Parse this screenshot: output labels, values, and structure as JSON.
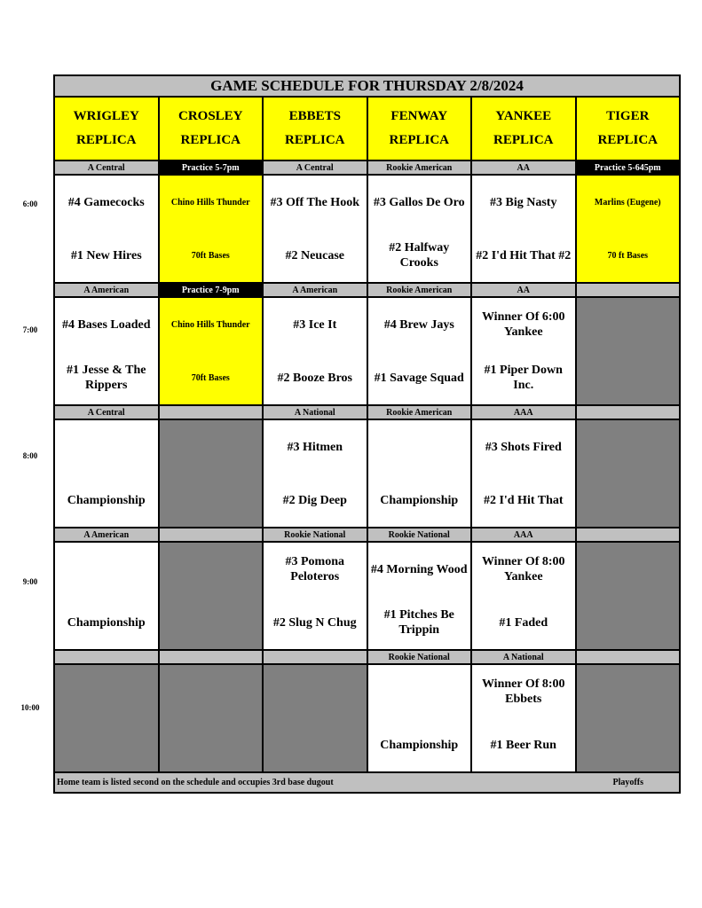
{
  "title": "GAME SCHEDULE FOR THURSDAY 2/8/2024",
  "fields": [
    {
      "name": "WRIGLEY",
      "sub": "REPLICA"
    },
    {
      "name": "CROSLEY",
      "sub": "REPLICA"
    },
    {
      "name": "EBBETS",
      "sub": "REPLICA"
    },
    {
      "name": "FENWAY",
      "sub": "REPLICA"
    },
    {
      "name": "YANKEE",
      "sub": "REPLICA"
    },
    {
      "name": "TIGER",
      "sub": "REPLICA"
    }
  ],
  "colors": {
    "header": "#ffff00",
    "label": "#c0c0c0",
    "practice_label": "#000000",
    "empty_slot": "#808080",
    "game": "#ffffff",
    "practice": "#ffff00"
  },
  "slots": [
    {
      "time": "6:00",
      "cells": [
        {
          "label": "A Central",
          "style": "gray",
          "type": "white",
          "top": "#4 Gamecocks",
          "bottom": "#1 New Hires"
        },
        {
          "label": "Practice 5-7pm",
          "style": "black",
          "type": "yellow",
          "top": "Chino Hills Thunder",
          "bottom": "70ft Bases"
        },
        {
          "label": "A Central",
          "style": "gray",
          "type": "white",
          "top": "#3 Off The Hook",
          "bottom": "#2 Neucase"
        },
        {
          "label": "Rookie American",
          "style": "gray",
          "type": "white",
          "top": "#3 Gallos De Oro",
          "bottom": "#2 Halfway Crooks"
        },
        {
          "label": "AA",
          "style": "gray",
          "type": "white",
          "top": "#3 Big Nasty",
          "bottom": "#2 I'd Hit That #2"
        },
        {
          "label": "Practice 5-645pm",
          "style": "black",
          "type": "yellow",
          "top": "Marlins (Eugene)",
          "bottom": "70 ft Bases"
        }
      ]
    },
    {
      "time": "7:00",
      "cells": [
        {
          "label": "A American",
          "style": "gray",
          "type": "white",
          "top": "#4 Bases Loaded",
          "bottom": "#1 Jesse & The Rippers"
        },
        {
          "label": "Practice 7-9pm",
          "style": "black",
          "type": "yellow",
          "top": "Chino Hills Thunder",
          "bottom": "70ft Bases"
        },
        {
          "label": "A American",
          "style": "gray",
          "type": "white",
          "top": "#3 Ice It",
          "bottom": "#2 Booze Bros"
        },
        {
          "label": "Rookie American",
          "style": "gray",
          "type": "white",
          "top": "#4 Brew Jays",
          "bottom": "#1 Savage Squad"
        },
        {
          "label": "AA",
          "style": "gray",
          "type": "white",
          "top": "Winner Of 6:00 Yankee",
          "bottom": "#1 Piper Down Inc."
        },
        {
          "label": "",
          "style": "gray",
          "type": "gray",
          "top": "",
          "bottom": ""
        }
      ]
    },
    {
      "time": "8:00",
      "cells": [
        {
          "label": "A Central",
          "style": "gray",
          "type": "white",
          "top": "",
          "bottom": "Championship"
        },
        {
          "label": "",
          "style": "gray",
          "type": "gray",
          "top": "",
          "bottom": ""
        },
        {
          "label": "A National",
          "style": "gray",
          "type": "white",
          "top": "#3 Hitmen",
          "bottom": "#2 Dig Deep"
        },
        {
          "label": "Rookie American",
          "style": "gray",
          "type": "white",
          "top": "",
          "bottom": "Championship"
        },
        {
          "label": "AAA",
          "style": "gray",
          "type": "white",
          "top": "#3 Shots Fired",
          "bottom": "#2 I'd Hit That"
        },
        {
          "label": "",
          "style": "gray",
          "type": "gray",
          "top": "",
          "bottom": ""
        }
      ]
    },
    {
      "time": "9:00",
      "cells": [
        {
          "label": "A American",
          "style": "gray",
          "type": "white",
          "top": "",
          "bottom": "Championship"
        },
        {
          "label": "",
          "style": "gray",
          "type": "gray",
          "top": "",
          "bottom": ""
        },
        {
          "label": "Rookie National",
          "style": "gray",
          "type": "white",
          "top": "#3 Pomona Peloteros",
          "bottom": "#2 Slug N Chug"
        },
        {
          "label": "Rookie National",
          "style": "gray",
          "type": "white",
          "top": "#4 Morning Wood",
          "bottom": "#1 Pitches Be Trippin"
        },
        {
          "label": "AAA",
          "style": "gray",
          "type": "white",
          "top": "Winner Of 8:00 Yankee",
          "bottom": "#1 Faded"
        },
        {
          "label": "",
          "style": "gray",
          "type": "gray",
          "top": "",
          "bottom": ""
        }
      ]
    },
    {
      "time": "10:00",
      "cells": [
        {
          "label": "",
          "style": "gray",
          "type": "gray",
          "top": "",
          "bottom": ""
        },
        {
          "label": "",
          "style": "gray",
          "type": "gray",
          "top": "",
          "bottom": ""
        },
        {
          "label": "",
          "style": "gray",
          "type": "gray",
          "top": "",
          "bottom": ""
        },
        {
          "label": "Rookie National",
          "style": "gray",
          "type": "white",
          "top": "",
          "bottom": "Championship"
        },
        {
          "label": "A National",
          "style": "gray",
          "type": "white",
          "top": "Winner Of 8:00 Ebbets",
          "bottom": "#1 Beer Run"
        },
        {
          "label": "",
          "style": "gray",
          "type": "gray",
          "top": "",
          "bottom": ""
        }
      ]
    }
  ],
  "footer": {
    "note": "Home team is listed second on the schedule and occupies 3rd base dugout",
    "right": "Playoffs"
  }
}
